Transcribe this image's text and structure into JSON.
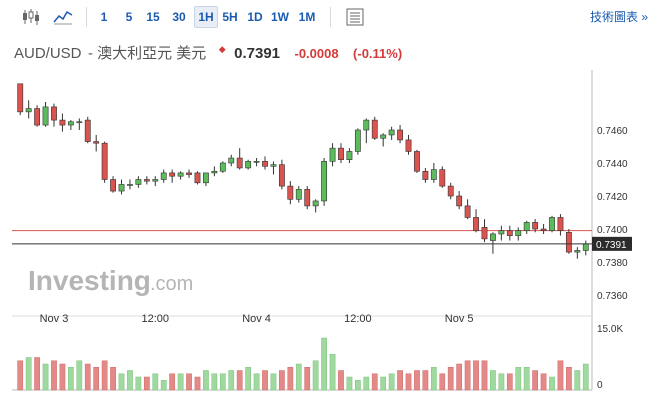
{
  "toolbar": {
    "timeframes": [
      "1",
      "5",
      "15",
      "30",
      "1H",
      "5H",
      "1D",
      "1W",
      "1M"
    ],
    "active_timeframe": "1H",
    "tech_chart_label": "技術圖表 »",
    "icons": [
      "candlestick-icon",
      "area-chart-icon",
      "table-icon"
    ]
  },
  "quote": {
    "symbol": "AUD/USD",
    "name": "- 澳大利亞元 美元",
    "price": "0.7391",
    "change": "-0.0008",
    "change_pct": "(-0.11%)",
    "change_color": "#d53a3a"
  },
  "watermark": {
    "brand": "Investing",
    "suffix": ".com"
  },
  "chart_data": {
    "type": "candlestick",
    "title": "",
    "y_ticks": [
      "0.7460",
      "0.7440",
      "0.7420",
      "0.7400",
      "0.7380",
      "0.7360"
    ],
    "ylim": [
      0.735,
      0.7475
    ],
    "x_labels": [
      {
        "index": 4,
        "label": "Nov 3"
      },
      {
        "index": 16,
        "label": "12:00"
      },
      {
        "index": 28,
        "label": "Nov 4"
      },
      {
        "index": 40,
        "label": "12:00"
      },
      {
        "index": 52,
        "label": "Nov 5"
      }
    ],
    "last_price_label": "0.7391",
    "reference_line": 0.7399,
    "volume_ticks": [
      "15.0K",
      "0"
    ],
    "up_color": "#5cbc5c",
    "down_color": "#d9534f",
    "candles": [
      [
        0.7488,
        0.7488,
        0.7469,
        0.7471
      ],
      [
        0.7471,
        0.7478,
        0.7467,
        0.7473
      ],
      [
        0.7473,
        0.7475,
        0.7462,
        0.7463
      ],
      [
        0.7463,
        0.7477,
        0.7462,
        0.7474
      ],
      [
        0.7474,
        0.7476,
        0.7462,
        0.7466
      ],
      [
        0.7466,
        0.747,
        0.7459,
        0.7463
      ],
      [
        0.7463,
        0.7466,
        0.746,
        0.7465
      ],
      [
        0.7465,
        0.7467,
        0.746,
        0.7465
      ],
      [
        0.7466,
        0.7468,
        0.7452,
        0.7453
      ],
      [
        0.7453,
        0.7457,
        0.7447,
        0.7452
      ],
      [
        0.7452,
        0.7453,
        0.7428,
        0.743
      ],
      [
        0.743,
        0.7432,
        0.7422,
        0.7423
      ],
      [
        0.7423,
        0.743,
        0.7421,
        0.7427
      ],
      [
        0.7427,
        0.743,
        0.7424,
        0.7427
      ],
      [
        0.7427,
        0.7432,
        0.7425,
        0.743
      ],
      [
        0.743,
        0.7432,
        0.7427,
        0.7429
      ],
      [
        0.7429,
        0.7432,
        0.7426,
        0.743
      ],
      [
        0.743,
        0.7436,
        0.7428,
        0.7434
      ],
      [
        0.7434,
        0.7436,
        0.7428,
        0.7432
      ],
      [
        0.7432,
        0.7435,
        0.743,
        0.7434
      ],
      [
        0.7434,
        0.7436,
        0.7431,
        0.7433
      ],
      [
        0.7434,
        0.7435,
        0.7427,
        0.7428
      ],
      [
        0.7428,
        0.7434,
        0.7426,
        0.7434
      ],
      [
        0.7434,
        0.7438,
        0.7432,
        0.7435
      ],
      [
        0.7435,
        0.7441,
        0.7434,
        0.744
      ],
      [
        0.744,
        0.7445,
        0.7438,
        0.7443
      ],
      [
        0.7443,
        0.7449,
        0.7436,
        0.7437
      ],
      [
        0.7437,
        0.7442,
        0.7436,
        0.7441
      ],
      [
        0.7441,
        0.7443,
        0.7438,
        0.7441
      ],
      [
        0.7441,
        0.7444,
        0.7436,
        0.7438
      ],
      [
        0.7438,
        0.7441,
        0.7433,
        0.7439
      ],
      [
        0.7439,
        0.7442,
        0.7424,
        0.7426
      ],
      [
        0.7426,
        0.7429,
        0.7415,
        0.7418
      ],
      [
        0.7418,
        0.7426,
        0.7416,
        0.7424
      ],
      [
        0.7424,
        0.7426,
        0.7412,
        0.7414
      ],
      [
        0.7414,
        0.7418,
        0.741,
        0.7417
      ],
      [
        0.7417,
        0.7443,
        0.7414,
        0.7441
      ],
      [
        0.7441,
        0.7452,
        0.7438,
        0.7449
      ],
      [
        0.7449,
        0.7452,
        0.744,
        0.7442
      ],
      [
        0.7442,
        0.7449,
        0.744,
        0.7447
      ],
      [
        0.7447,
        0.7461,
        0.7445,
        0.746
      ],
      [
        0.746,
        0.7467,
        0.7452,
        0.7466
      ],
      [
        0.7466,
        0.7468,
        0.7454,
        0.7455
      ],
      [
        0.7455,
        0.7458,
        0.745,
        0.7457
      ],
      [
        0.7457,
        0.7462,
        0.7454,
        0.746
      ],
      [
        0.746,
        0.7463,
        0.7452,
        0.7454
      ],
      [
        0.7454,
        0.7457,
        0.7445,
        0.7447
      ],
      [
        0.7447,
        0.7448,
        0.7434,
        0.7435
      ],
      [
        0.7435,
        0.7437,
        0.7428,
        0.743
      ],
      [
        0.743,
        0.744,
        0.7428,
        0.7436
      ],
      [
        0.7436,
        0.7438,
        0.7425,
        0.7426
      ],
      [
        0.7426,
        0.7428,
        0.7418,
        0.742
      ],
      [
        0.742,
        0.7423,
        0.7412,
        0.7414
      ],
      [
        0.7414,
        0.7418,
        0.7406,
        0.7407
      ],
      [
        0.7407,
        0.7412,
        0.7398,
        0.7399
      ],
      [
        0.7401,
        0.7406,
        0.7392,
        0.7394
      ],
      [
        0.7393,
        0.7398,
        0.7385,
        0.7397
      ],
      [
        0.7397,
        0.7402,
        0.7393,
        0.7399
      ],
      [
        0.7399,
        0.7402,
        0.7393,
        0.7396
      ],
      [
        0.7396,
        0.7401,
        0.7393,
        0.7399
      ],
      [
        0.7399,
        0.7405,
        0.7397,
        0.7404
      ],
      [
        0.7404,
        0.7406,
        0.7398,
        0.74
      ],
      [
        0.74,
        0.7403,
        0.7397,
        0.7399
      ],
      [
        0.7399,
        0.7408,
        0.7398,
        0.7407
      ],
      [
        0.7407,
        0.7409,
        0.7396,
        0.7399
      ],
      [
        0.7398,
        0.74,
        0.7385,
        0.7386
      ],
      [
        0.7386,
        0.7389,
        0.7382,
        0.7387
      ],
      [
        0.7387,
        0.7393,
        0.7384,
        0.7391
      ]
    ],
    "volume": [
      9,
      10,
      10,
      8,
      9,
      8,
      7,
      9,
      8,
      7,
      9,
      7,
      5,
      6,
      4,
      4,
      5,
      3,
      5,
      5,
      5,
      4,
      6,
      5,
      5,
      6,
      6,
      7,
      5,
      6,
      5,
      6,
      7,
      8,
      7,
      9,
      16,
      11,
      6,
      4,
      3,
      4,
      5,
      4,
      5,
      6,
      5,
      6,
      6,
      7,
      5,
      7,
      8,
      9,
      9,
      9,
      6,
      5,
      5,
      7,
      7,
      6,
      5,
      4,
      9,
      7,
      6,
      8
    ],
    "volume_max": 16
  }
}
